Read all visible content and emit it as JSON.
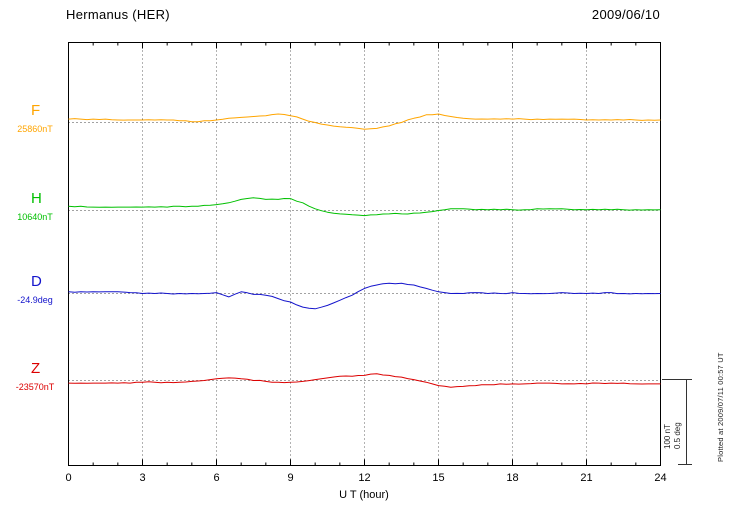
{
  "chart_data": {
    "type": "line",
    "title": "Hermanus (HER)",
    "date": "2009/06/10",
    "xlabel": "U T (hour)",
    "x_range": [
      0,
      24
    ],
    "x_ticks": [
      0,
      3,
      6,
      9,
      12,
      15,
      18,
      21,
      24
    ],
    "sample_step_hours": 0.5,
    "grid": "dotted vertical lines every 3 hours; dotted horizontal baseline per series",
    "plotted_at": "Plotted at 2009/07/11 00:57 UT",
    "scale_bar": {
      "label_nt": "100 nT",
      "label_deg": "0.5 deg",
      "span_nt": 100,
      "span_deg": 0.5
    },
    "series": [
      {
        "name": "F",
        "baseline_label": "25860nT",
        "baseline_value": 25860,
        "units": "nT",
        "color": "#FFA500",
        "offsets_from_baseline": [
          4,
          4,
          4,
          4,
          3,
          3,
          3,
          3,
          3,
          2,
          1,
          2,
          3,
          5,
          6,
          7,
          8,
          10,
          8,
          4,
          0,
          -3,
          -5,
          -6,
          -8,
          -7,
          -4,
          0,
          5,
          9,
          10,
          7,
          5,
          4,
          4,
          4,
          4,
          4,
          4,
          4,
          4,
          4,
          3,
          3,
          3,
          3,
          3,
          3,
          3
        ]
      },
      {
        "name": "H",
        "baseline_label": "10640nT",
        "baseline_value": 10640,
        "units": "nT",
        "color": "#00C000",
        "offsets_from_baseline": [
          5,
          5,
          4,
          4,
          4,
          4,
          4,
          4,
          4,
          5,
          5,
          6,
          7,
          9,
          13,
          15,
          13,
          13,
          14,
          9,
          2,
          -2,
          -4,
          -5,
          -6,
          -5,
          -4,
          -4,
          -3,
          -2,
          0,
          2,
          2,
          1,
          1,
          1,
          1,
          1,
          2,
          2,
          2,
          1,
          1,
          1,
          1,
          1,
          1,
          1,
          1
        ]
      },
      {
        "name": "D",
        "baseline_label": "-24.9deg",
        "baseline_value": -24.9,
        "units": "deg",
        "color": "#1414CC",
        "offsets_from_baseline": [
          0.01,
          0.01,
          0.01,
          0.01,
          0.01,
          0.005,
          0,
          0,
          0,
          0,
          0,
          0,
          0.005,
          -0.02,
          0.01,
          -0.005,
          -0.01,
          -0.03,
          -0.05,
          -0.08,
          -0.09,
          -0.07,
          -0.04,
          -0.01,
          0.03,
          0.05,
          0.06,
          0.06,
          0.05,
          0.03,
          0.01,
          0,
          0,
          0.005,
          0,
          0,
          0.005,
          0,
          0,
          0,
          0.005,
          0,
          0,
          0,
          0.005,
          0,
          0,
          0,
          0
        ]
      },
      {
        "name": "Z",
        "baseline_label": "-23570nT",
        "baseline_value": -23570,
        "units": "nT",
        "color": "#DC0000",
        "offsets_from_baseline": [
          -3,
          -3,
          -3,
          -3,
          -3,
          -3,
          -2,
          -2,
          -2,
          -2,
          -1,
          0,
          2,
          3,
          2,
          0,
          -1,
          -2,
          -2,
          -1,
          1,
          3,
          5,
          5,
          6,
          8,
          6,
          4,
          1,
          -2,
          -6,
          -8,
          -7,
          -6,
          -5,
          -4,
          -4,
          -4,
          -3,
          -3,
          -4,
          -4,
          -4,
          -3,
          -3,
          -3,
          -4,
          -4,
          -4
        ]
      }
    ]
  }
}
